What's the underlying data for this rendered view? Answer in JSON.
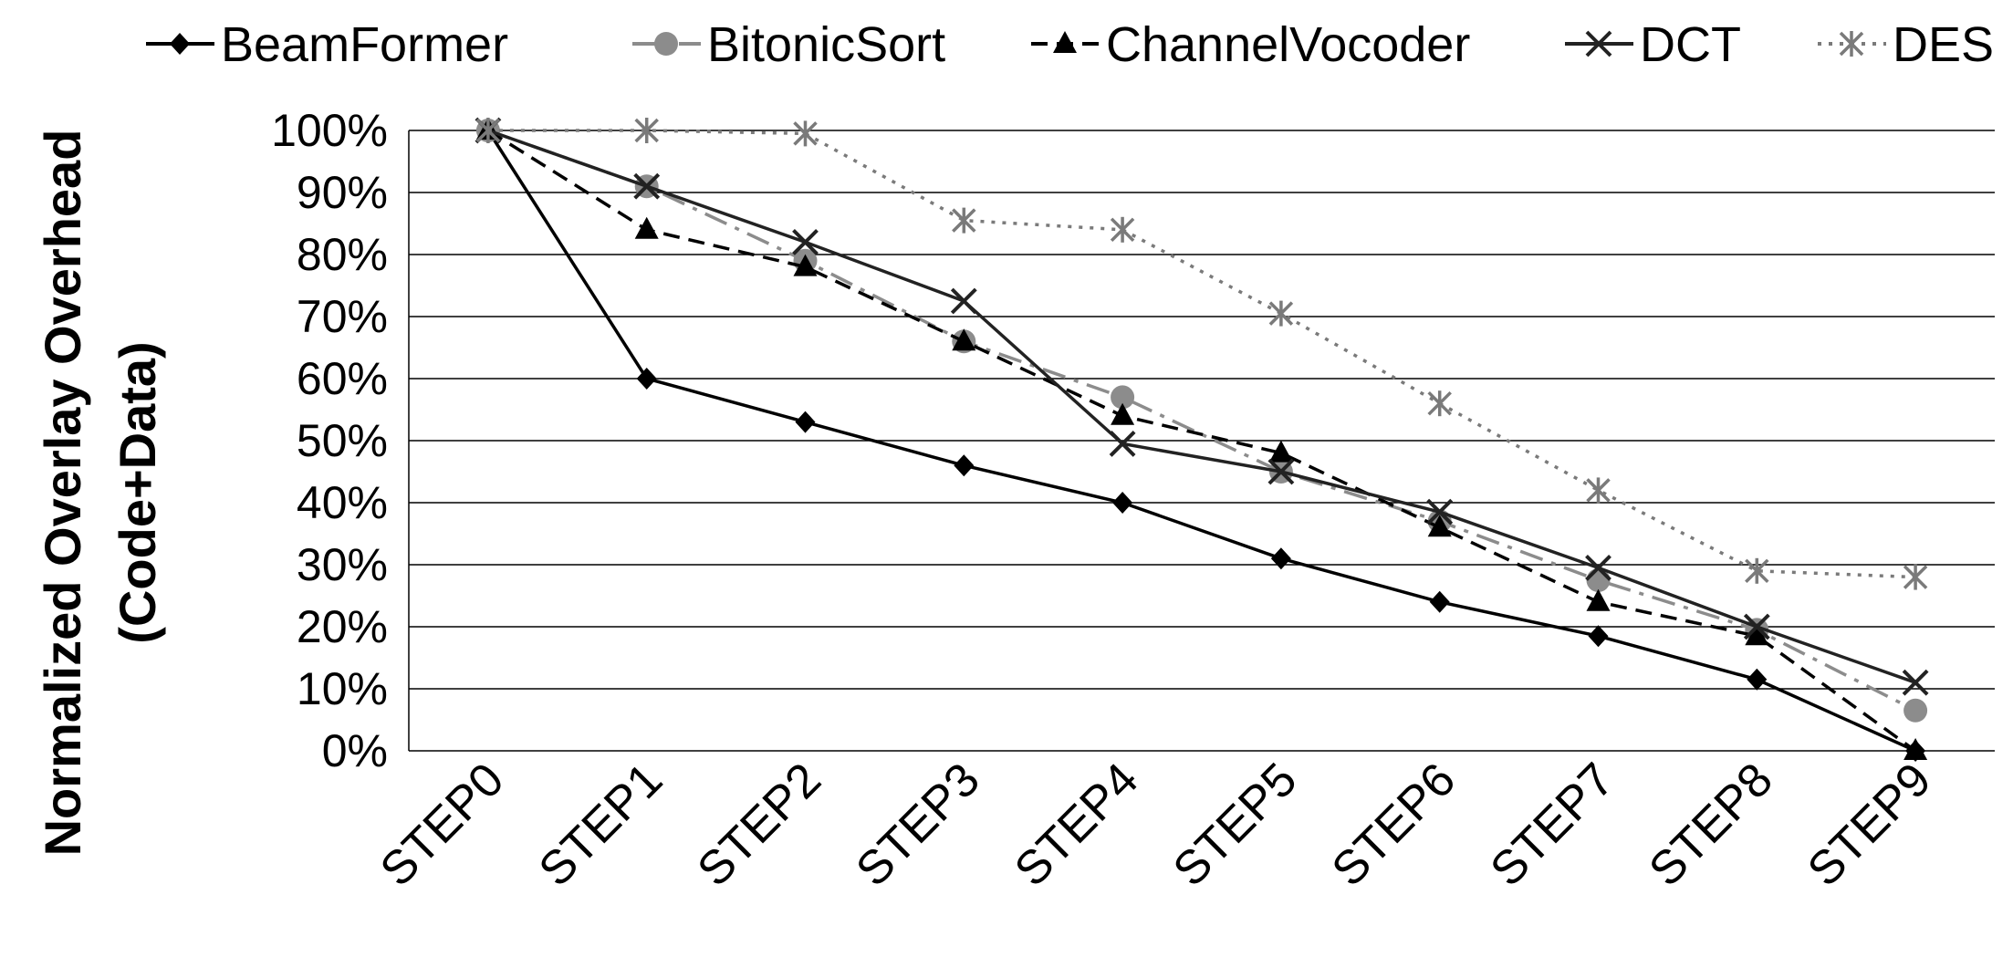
{
  "chart_data": {
    "type": "line",
    "categories": [
      "STEP0",
      "STEP1",
      "STEP2",
      "STEP3",
      "STEP4",
      "STEP5",
      "STEP6",
      "STEP7",
      "STEP8",
      "STEP9"
    ],
    "ylabel_line1": "Normalized Overlay Overhead",
    "ylabel_line2": "(Code+Data)",
    "ylim": [
      0,
      100
    ],
    "yticks": [
      "0%",
      "10%",
      "20%",
      "30%",
      "40%",
      "50%",
      "60%",
      "70%",
      "80%",
      "90%",
      "100%"
    ],
    "grid": "horizontal",
    "legend_position": "top",
    "series": [
      {
        "name": "BeamFormer",
        "values": [
          100,
          60,
          53,
          46,
          40,
          31,
          24,
          18.5,
          11.5,
          0
        ],
        "color": "#000000",
        "dash": "solid",
        "marker": "diamond"
      },
      {
        "name": "BitonicSort",
        "values": [
          100,
          91,
          79,
          66,
          57,
          45,
          37,
          27.5,
          19.5,
          6.5
        ],
        "color": "#8c8c8c",
        "dash": "longdash",
        "marker": "circle"
      },
      {
        "name": "ChannelVocoder",
        "values": [
          100,
          84,
          78,
          66,
          54,
          48,
          36,
          24,
          18.5,
          0
        ],
        "color": "#000000",
        "dash": "dashed",
        "marker": "triangle"
      },
      {
        "name": "DCT",
        "values": [
          100,
          91,
          82,
          72.5,
          49.5,
          45,
          38.5,
          29.5,
          20,
          11
        ],
        "color": "#222222",
        "dash": "solid",
        "marker": "x"
      },
      {
        "name": "DES",
        "values": [
          100,
          100,
          99.5,
          85.5,
          84,
          70.5,
          56,
          42,
          29,
          28
        ],
        "color": "#7a7a7a",
        "dash": "dotted",
        "marker": "star"
      }
    ]
  }
}
